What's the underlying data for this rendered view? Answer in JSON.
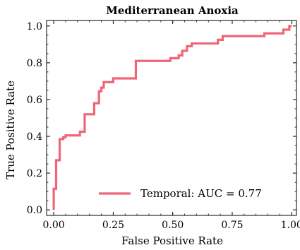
{
  "chart_data": {
    "type": "line",
    "title": "Mediterranean Anoxia",
    "xlabel": "False Positive Rate",
    "ylabel": "True Positive Rate",
    "xlim": [
      -0.03,
      1.02
    ],
    "ylim": [
      -0.03,
      1.03
    ],
    "xticks": [
      0.0,
      0.25,
      0.5,
      0.75,
      1.0
    ],
    "xtick_labels": [
      "0.00",
      "0.25",
      "0.50",
      "0.75",
      "1.00"
    ],
    "yticks": [
      0.0,
      0.2,
      0.4,
      0.6,
      0.8,
      1.0
    ],
    "ytick_labels": [
      "0.0",
      "0.2",
      "0.4",
      "0.6",
      "0.8",
      "1.0"
    ],
    "grid": false,
    "legend_position": "lower-right",
    "series": [
      {
        "name": "Temporal: AUC = 0.77",
        "color": "#ee6677",
        "x": [
          0.0,
          0.0,
          0.01,
          0.01,
          0.025,
          0.025,
          0.04,
          0.04,
          0.05,
          0.05,
          0.11,
          0.11,
          0.13,
          0.13,
          0.17,
          0.17,
          0.19,
          0.19,
          0.2,
          0.2,
          0.21,
          0.21,
          0.25,
          0.25,
          0.345,
          0.345,
          0.49,
          0.49,
          0.525,
          0.525,
          0.54,
          0.54,
          0.56,
          0.56,
          0.58,
          0.58,
          0.69,
          0.69,
          0.71,
          0.71,
          0.885,
          0.885,
          0.965,
          0.965,
          0.99,
          0.99,
          1.0
        ],
        "y": [
          0.0,
          0.115,
          0.115,
          0.27,
          0.27,
          0.385,
          0.385,
          0.395,
          0.395,
          0.405,
          0.405,
          0.425,
          0.425,
          0.52,
          0.52,
          0.58,
          0.58,
          0.645,
          0.645,
          0.665,
          0.665,
          0.695,
          0.695,
          0.715,
          0.715,
          0.81,
          0.81,
          0.825,
          0.825,
          0.84,
          0.84,
          0.865,
          0.865,
          0.89,
          0.89,
          0.905,
          0.905,
          0.925,
          0.925,
          0.945,
          0.945,
          0.96,
          0.96,
          0.98,
          0.98,
          1.0,
          1.0
        ]
      }
    ]
  }
}
